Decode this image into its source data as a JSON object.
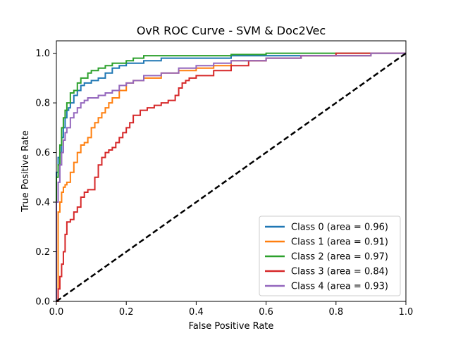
{
  "chart_data": {
    "type": "line",
    "title": "OvR ROC Curve - SVM & Doc2Vec",
    "xlabel": "False Positive Rate",
    "ylabel": "True Positive Rate",
    "xlim": [
      0.0,
      1.0
    ],
    "ylim": [
      0.0,
      1.05
    ],
    "xticks": [
      "0.0",
      "0.2",
      "0.4",
      "0.6",
      "0.8",
      "1.0"
    ],
    "yticks": [
      "0.0",
      "0.2",
      "0.4",
      "0.6",
      "0.8",
      "1.0"
    ],
    "grid": false,
    "legend_position": "lower-right",
    "reference_line": {
      "x": [
        0,
        1
      ],
      "y": [
        0,
        1
      ],
      "style": "dashed",
      "color": "#000000"
    },
    "series": [
      {
        "name": "Class 0 (area = 0.96)",
        "color": "#1f77b4",
        "x": [
          0,
          0,
          0.005,
          0.005,
          0.01,
          0.01,
          0.015,
          0.02,
          0.025,
          0.03,
          0.035,
          0.04,
          0.05,
          0.06,
          0.07,
          0.08,
          0.09,
          0.1,
          0.12,
          0.14,
          0.16,
          0.18,
          0.2,
          0.25,
          0.3,
          0.4,
          0.5,
          0.6,
          0.7,
          0.8,
          0.9
        ],
        "y": [
          0,
          0.52,
          0.52,
          0.58,
          0.58,
          0.6,
          0.66,
          0.7,
          0.74,
          0.77,
          0.78,
          0.8,
          0.83,
          0.85,
          0.87,
          0.88,
          0.88,
          0.89,
          0.9,
          0.92,
          0.94,
          0.95,
          0.96,
          0.97,
          0.98,
          0.98,
          0.99,
          0.99,
          0.99,
          0.99,
          0.99
        ]
      },
      {
        "name": "Class 1 (area = 0.91)",
        "color": "#ff7f0e",
        "x": [
          0,
          0.005,
          0.005,
          0.01,
          0.015,
          0.02,
          0.025,
          0.03,
          0.04,
          0.05,
          0.06,
          0.07,
          0.08,
          0.09,
          0.1,
          0.11,
          0.12,
          0.13,
          0.14,
          0.15,
          0.16,
          0.18,
          0.2,
          0.22,
          0.25,
          0.3,
          0.35,
          0.4,
          0.45,
          0.5,
          0.6,
          0.7,
          0.8,
          0.9,
          1.0
        ],
        "y": [
          0,
          0.2,
          0.36,
          0.4,
          0.44,
          0.46,
          0.47,
          0.48,
          0.52,
          0.56,
          0.6,
          0.63,
          0.64,
          0.66,
          0.7,
          0.72,
          0.74,
          0.76,
          0.78,
          0.8,
          0.82,
          0.85,
          0.88,
          0.89,
          0.9,
          0.92,
          0.93,
          0.94,
          0.95,
          0.97,
          0.98,
          0.99,
          0.99,
          1.0,
          1.0
        ]
      },
      {
        "name": "Class 2 (area = 0.97)",
        "color": "#2ca02c",
        "x": [
          0,
          0,
          0.005,
          0.01,
          0.015,
          0.02,
          0.025,
          0.03,
          0.04,
          0.05,
          0.06,
          0.07,
          0.08,
          0.09,
          0.1,
          0.12,
          0.14,
          0.16,
          0.18,
          0.2,
          0.22,
          0.25,
          0.3,
          0.4,
          0.5,
          0.6,
          0.7,
          0.8,
          0.9,
          1.0
        ],
        "y": [
          0,
          0.5,
          0.55,
          0.63,
          0.7,
          0.74,
          0.77,
          0.8,
          0.84,
          0.85,
          0.88,
          0.9,
          0.9,
          0.92,
          0.93,
          0.94,
          0.95,
          0.96,
          0.96,
          0.97,
          0.98,
          0.99,
          0.99,
          0.99,
          0.995,
          1.0,
          1.0,
          1.0,
          1.0,
          1.0
        ]
      },
      {
        "name": "Class 3 (area = 0.84)",
        "color": "#d62728",
        "x": [
          0,
          0.005,
          0.01,
          0.015,
          0.02,
          0.025,
          0.03,
          0.04,
          0.05,
          0.06,
          0.07,
          0.08,
          0.09,
          0.1,
          0.11,
          0.12,
          0.13,
          0.14,
          0.15,
          0.16,
          0.17,
          0.18,
          0.19,
          0.2,
          0.21,
          0.22,
          0.24,
          0.26,
          0.28,
          0.3,
          0.32,
          0.34,
          0.35,
          0.36,
          0.37,
          0.38,
          0.4,
          0.45,
          0.5,
          0.55,
          0.6,
          0.7,
          0.8,
          0.9,
          1.0
        ],
        "y": [
          0,
          0.05,
          0.1,
          0.15,
          0.2,
          0.27,
          0.32,
          0.33,
          0.36,
          0.38,
          0.42,
          0.44,
          0.45,
          0.45,
          0.5,
          0.55,
          0.58,
          0.6,
          0.61,
          0.62,
          0.64,
          0.66,
          0.68,
          0.7,
          0.72,
          0.75,
          0.77,
          0.78,
          0.79,
          0.8,
          0.81,
          0.83,
          0.86,
          0.88,
          0.89,
          0.9,
          0.91,
          0.93,
          0.95,
          0.97,
          0.98,
          0.99,
          1.0,
          1.0,
          1.0
        ]
      },
      {
        "name": "Class 4 (area = 0.93)",
        "color": "#9467bd",
        "x": [
          0,
          0,
          0.005,
          0.01,
          0.015,
          0.02,
          0.025,
          0.03,
          0.04,
          0.05,
          0.06,
          0.07,
          0.08,
          0.09,
          0.1,
          0.12,
          0.14,
          0.16,
          0.18,
          0.2,
          0.22,
          0.25,
          0.3,
          0.35,
          0.4,
          0.45,
          0.5,
          0.55,
          0.6,
          0.7,
          0.8,
          0.9,
          1.0
        ],
        "y": [
          0,
          0.4,
          0.48,
          0.55,
          0.6,
          0.65,
          0.68,
          0.7,
          0.74,
          0.76,
          0.78,
          0.8,
          0.81,
          0.82,
          0.82,
          0.83,
          0.84,
          0.85,
          0.87,
          0.88,
          0.89,
          0.91,
          0.92,
          0.94,
          0.95,
          0.96,
          0.97,
          0.97,
          0.98,
          0.99,
          0.99,
          1.0,
          1.0
        ]
      }
    ]
  }
}
